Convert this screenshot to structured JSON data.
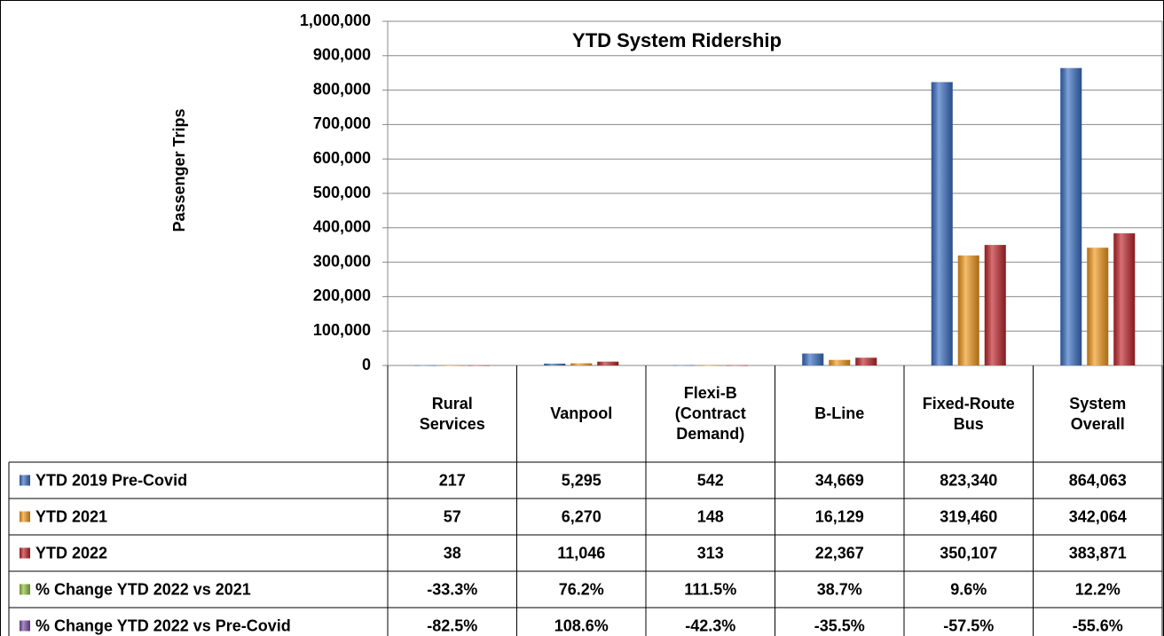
{
  "chart_data": {
    "type": "bar",
    "title": "YTD System Ridership",
    "y_label": "Passenger  Trips",
    "categories": [
      "Rural Services",
      "Vanpool",
      "Flexi-B (Contract Demand)",
      "B-Line",
      "Fixed-Route Bus",
      "System Overall"
    ],
    "ylim": [
      0,
      1000000
    ],
    "yticks": [
      0,
      {
        "value": 100000,
        "label": "100,000"
      },
      {
        "value": 200000,
        "label": "200,000"
      },
      {
        "value": 300000,
        "label": "300,000"
      },
      {
        "value": 400000,
        "label": "400,000"
      },
      {
        "value": 500000,
        "label": "500,000"
      },
      {
        "value": 600000,
        "label": "600,000"
      },
      {
        "value": 700000,
        "label": "700,000"
      },
      {
        "value": 800000,
        "label": "800,000"
      },
      {
        "value": 900000,
        "label": "900,000"
      },
      {
        "value": 1000000,
        "label": "1,000,000"
      }
    ],
    "grid": true,
    "series": [
      {
        "name": "YTD 2019 Pre-Covid",
        "color": "#3a6fc4",
        "values": [
          217,
          5295,
          542,
          34669,
          823340,
          864063
        ],
        "value_labels": [
          "217",
          "5,295",
          "542",
          "34,669",
          "823,340",
          "864,063"
        ]
      },
      {
        "name": "YTD 2021",
        "color": "#f39a1e",
        "values": [
          57,
          6270,
          148,
          16129,
          319460,
          342064
        ],
        "value_labels": [
          "57",
          "6,270",
          "148",
          "16,129",
          "319,460",
          "342,064"
        ]
      },
      {
        "name": "YTD 2022",
        "color": "#c0262c",
        "values": [
          38,
          11046,
          313,
          22367,
          350107,
          383871
        ],
        "value_labels": [
          "38",
          "11,046",
          "313",
          "22,367",
          "350,107",
          "383,871"
        ]
      }
    ],
    "table_rows": [
      {
        "name": "% Change YTD 2022 vs 2021",
        "color": "#8fc043",
        "values": [
          -33.3,
          76.2,
          111.5,
          38.7,
          9.6,
          12.2
        ],
        "value_labels": [
          "-33.3%",
          "76.2%",
          "111.5%",
          "38.7%",
          "9.6%",
          "12.2%"
        ]
      },
      {
        "name": "% Change YTD 2022 vs Pre-Covid",
        "color": "#7b4fa3",
        "values": [
          -82.5,
          108.6,
          -42.3,
          -35.5,
          -57.5,
          -55.6
        ],
        "value_labels": [
          "-82.5%",
          "108.6%",
          "-42.3%",
          "-35.5%",
          "-57.5%",
          "-55.6%"
        ]
      }
    ]
  }
}
